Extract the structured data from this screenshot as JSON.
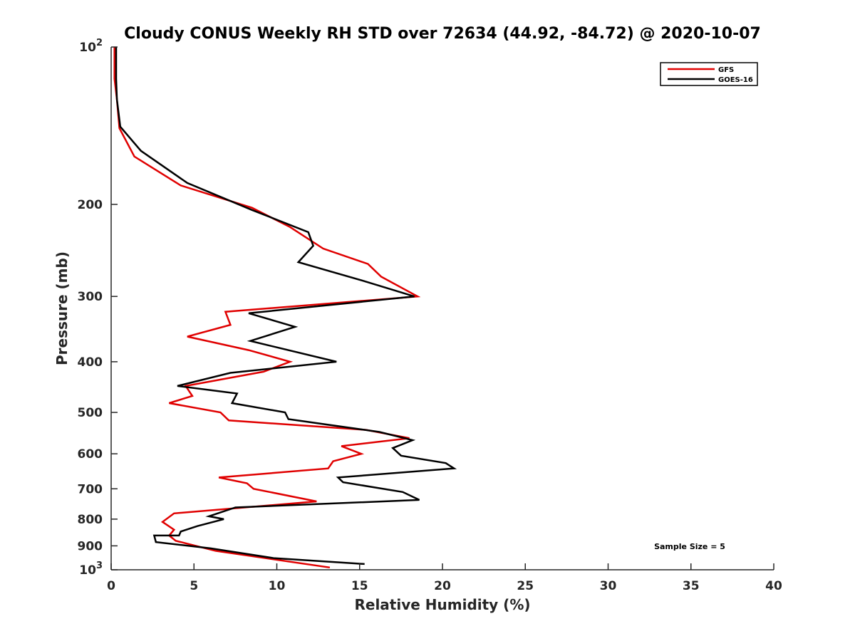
{
  "chart_data": {
    "type": "line",
    "title": "Cloudy CONUS Weekly RH STD over 72634 (44.92, -84.72) @ 2020-10-07",
    "xlabel": "Relative Humidity (%)",
    "ylabel": "Pressure (mb)",
    "xlim": [
      0,
      40
    ],
    "ylim": [
      100,
      1000
    ],
    "yscale": "log",
    "y_reversed": true,
    "grid": false,
    "x_ticks": [
      0,
      5,
      10,
      15,
      20,
      25,
      30,
      35,
      40
    ],
    "x_tick_labels": [
      "0",
      "5",
      "10",
      "15",
      "20",
      "25",
      "30",
      "35",
      "40"
    ],
    "y_ticks": [
      100,
      200,
      300,
      400,
      500,
      600,
      700,
      800,
      900,
      1000
    ],
    "y_tick_labels": [
      {
        "base": "10",
        "sup": "2"
      },
      {
        "base": "200",
        "sup": ""
      },
      {
        "base": "300",
        "sup": ""
      },
      {
        "base": "400",
        "sup": ""
      },
      {
        "base": "500",
        "sup": ""
      },
      {
        "base": "600",
        "sup": ""
      },
      {
        "base": "700",
        "sup": ""
      },
      {
        "base": "800",
        "sup": ""
      },
      {
        "base": "900",
        "sup": ""
      },
      {
        "base": "10",
        "sup": "3"
      }
    ],
    "legend_position": "top-right",
    "series": [
      {
        "name": "GFS",
        "color": "#e00000",
        "points": [
          [
            0.2,
            100
          ],
          [
            0.2,
            115
          ],
          [
            0.35,
            126
          ],
          [
            0.5,
            143
          ],
          [
            1.4,
            162
          ],
          [
            4.2,
            184
          ],
          [
            8.5,
            203
          ],
          [
            10.8,
            221
          ],
          [
            12.8,
            243
          ],
          [
            15.5,
            260
          ],
          [
            16.3,
            275
          ],
          [
            18.5,
            300
          ],
          [
            6.9,
            321
          ],
          [
            7.2,
            340
          ],
          [
            4.6,
            358
          ],
          [
            8.3,
            380
          ],
          [
            10.8,
            400
          ],
          [
            9.2,
            418
          ],
          [
            4.5,
            445
          ],
          [
            4.9,
            465
          ],
          [
            3.5,
            480
          ],
          [
            6.6,
            500
          ],
          [
            7.1,
            518
          ],
          [
            15.4,
            540
          ],
          [
            18.0,
            560
          ],
          [
            13.9,
            580
          ],
          [
            15.1,
            600
          ],
          [
            13.4,
            620
          ],
          [
            13.1,
            640
          ],
          [
            6.5,
            666
          ],
          [
            8.2,
            683
          ],
          [
            8.6,
            700
          ],
          [
            12.4,
            740
          ],
          [
            3.8,
            780
          ],
          [
            3.1,
            810
          ],
          [
            3.8,
            838
          ],
          [
            3.5,
            860
          ],
          [
            3.9,
            880
          ],
          [
            6.3,
            920
          ],
          [
            13.2,
            990
          ]
        ]
      },
      {
        "name": "GOES-16",
        "color": "#000000",
        "points": [
          [
            0.3,
            100
          ],
          [
            0.3,
            115
          ],
          [
            0.35,
            126
          ],
          [
            0.55,
            142
          ],
          [
            1.8,
            158
          ],
          [
            4.6,
            182
          ],
          [
            8.5,
            205
          ],
          [
            11.9,
            226
          ],
          [
            12.2,
            240
          ],
          [
            11.3,
            258
          ],
          [
            15.2,
            280
          ],
          [
            18.3,
            300
          ],
          [
            8.3,
            323
          ],
          [
            11.1,
            343
          ],
          [
            8.4,
            365
          ],
          [
            13.6,
            400
          ],
          [
            7.2,
            420
          ],
          [
            4.0,
            445
          ],
          [
            7.6,
            460
          ],
          [
            7.3,
            480
          ],
          [
            10.5,
            500
          ],
          [
            10.7,
            515
          ],
          [
            16.2,
            545
          ],
          [
            18.2,
            565
          ],
          [
            17.0,
            585
          ],
          [
            17.5,
            605
          ],
          [
            20.2,
            625
          ],
          [
            20.7,
            640
          ],
          [
            13.7,
            666
          ],
          [
            14.0,
            680
          ],
          [
            17.6,
            710
          ],
          [
            18.6,
            735
          ],
          [
            7.5,
            760
          ],
          [
            5.9,
            790
          ],
          [
            6.8,
            800
          ],
          [
            5.2,
            825
          ],
          [
            4.2,
            845
          ],
          [
            4.1,
            860
          ],
          [
            2.6,
            860
          ],
          [
            2.7,
            885
          ],
          [
            6.0,
            910
          ],
          [
            9.8,
            950
          ],
          [
            15.3,
            975
          ]
        ]
      }
    ],
    "annotation": "Sample Size = 5"
  }
}
